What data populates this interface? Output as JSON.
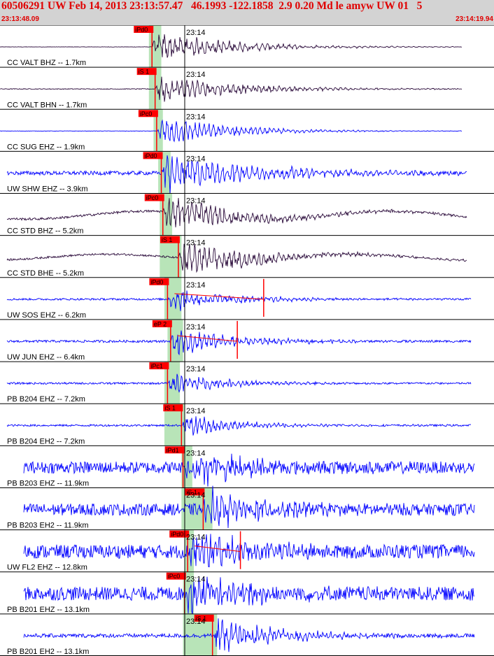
{
  "header": {
    "title": "60506291 UW Feb 14, 2013 23:13:57.47   46.1993 -122.1858  2.9 0.20 Md le amyw UW 01   5",
    "start_time": "23:13:48.09",
    "end_time": "23:14:19.94"
  },
  "minute_label": "23:14",
  "colors": {
    "pick": "#ff0000",
    "band": "#b8e4b8",
    "dark_trace": "#2a0a3a",
    "blue_trace": "#0000ff",
    "red": "#e00000"
  },
  "chart_data": {
    "type": "line",
    "title": "60506291 UW Feb 14, 2013 23:13:57.47   46.1993 -122.1858  2.9 0.20 Md le amyw UW 01   5",
    "x_axis": {
      "start": "23:13:48.09",
      "end": "23:14:19.94",
      "unit": "s",
      "range_seconds": [
        0,
        31.85
      ],
      "minute_mark": "23:14",
      "minute_mark_seconds": 11.91
    },
    "channels": [
      {
        "label": "CC VALT BHZ -- 1.7km",
        "pick": "iPd0",
        "pick_seconds": 9.8,
        "band_seconds": [
          9.6,
          10.4
        ],
        "color": "#2a0a3a",
        "trace_end_seconds": 29.8,
        "noise": 0.01,
        "amp": 0.75,
        "decay": 5,
        "period": 0.35,
        "drift": 0
      },
      {
        "label": "CC VALT BHN -- 1.7km",
        "pick": "iS 1",
        "pick_seconds": 10.0,
        "band_seconds": [
          9.6,
          10.4
        ],
        "color": "#2a0a3a",
        "trace_end_seconds": 29.8,
        "noise": 0.02,
        "amp": 0.7,
        "decay": 5,
        "period": 0.33,
        "drift": 0
      },
      {
        "label": "CC SUG EHZ -- 1.9km",
        "pick": "iPc0",
        "pick_seconds": 10.1,
        "band_seconds": [
          9.9,
          10.5
        ],
        "color": "#0000ff",
        "trace_end_seconds": 29.8,
        "noise": 0.01,
        "amp": 0.7,
        "decay": 4.5,
        "period": 0.3,
        "drift": 0
      },
      {
        "label": "UW SHW EHZ -- 3.9km",
        "pick": "iPd0",
        "pick_seconds": 10.4,
        "band_seconds": [
          10.2,
          11.0
        ],
        "color": "#0000ff",
        "trace_end_seconds": 30.1,
        "noise": 0.1,
        "amp": 0.95,
        "decay": 6,
        "period": 0.32,
        "drift": 0
      },
      {
        "label": "CC STD BHZ -- 5.2km",
        "pick": "iPc0",
        "pick_seconds": 10.5,
        "band_seconds": [
          10.3,
          11.1
        ],
        "color": "#2a0a3a",
        "trace_end_seconds": 30.1,
        "noise": 0.06,
        "amp": 0.85,
        "decay": 5,
        "period": 0.3,
        "drift": 0.2
      },
      {
        "label": "CC STD BHE -- 5.2km",
        "pick": "iS 1",
        "pick_seconds": 11.5,
        "band_seconds": [
          10.3,
          11.7
        ],
        "color": "#2a0a3a",
        "trace_end_seconds": 30.1,
        "noise": 0.05,
        "amp": 0.8,
        "decay": 5,
        "period": 0.32,
        "drift": 0.15
      },
      {
        "label": "UW SOS EHZ -- 6.2km",
        "pick": "iPd0",
        "pick_seconds": 10.8,
        "band_seconds": [
          10.6,
          11.7
        ],
        "color": "#0000ff",
        "trace_end_seconds": 30.4,
        "noise": 0.05,
        "amp": 0.6,
        "decay": 4,
        "period": 0.3,
        "drift": 0,
        "coda_tick_seconds": 17.0
      },
      {
        "label": "UW JUN EHZ -- 6.4km",
        "pick": "eP 2",
        "pick_seconds": 11.0,
        "band_seconds": [
          10.8,
          11.8
        ],
        "color": "#0000ff",
        "trace_end_seconds": 30.4,
        "noise": 0.06,
        "amp": 0.7,
        "decay": 4,
        "period": 0.3,
        "drift": 0,
        "coda_tick_seconds": 15.3
      },
      {
        "label": "PB B204 EHZ -- 7.2km",
        "pick": "iPc1",
        "pick_seconds": 10.8,
        "band_seconds": [
          10.6,
          11.6
        ],
        "color": "#0000ff",
        "trace_end_seconds": 30.4,
        "noise": 0.05,
        "amp": 0.6,
        "decay": 3.5,
        "period": 0.28,
        "drift": 0
      },
      {
        "label": "PB B204 EH2 -- 7.2km",
        "pick": "iS 1",
        "pick_seconds": 11.7,
        "band_seconds": [
          10.6,
          11.9
        ],
        "color": "#0000ff",
        "trace_end_seconds": 30.4,
        "noise": 0.05,
        "amp": 0.6,
        "decay": 3.5,
        "period": 0.28,
        "drift": 0
      },
      {
        "label": "PB B203 EHZ -- 11.9km",
        "pick": "iPd1",
        "pick_seconds": 11.8,
        "band_seconds": [
          11.7,
          12.4
        ],
        "color": "#0000ff",
        "trace_end_seconds": 30.6,
        "noise": 0.3,
        "amp": 0.95,
        "decay": 4,
        "period": 0.28,
        "drift": 0
      },
      {
        "label": "PB B203 EH2 -- 11.9km",
        "pick": "iS 1",
        "pick_seconds": 13.1,
        "band_seconds": [
          11.7,
          13.7
        ],
        "color": "#0000ff",
        "trace_end_seconds": 30.6,
        "noise": 0.3,
        "amp": 0.95,
        "decay": 4,
        "period": 0.28,
        "drift": 0
      },
      {
        "label": "UW FL2 EHZ -- 12.8km",
        "pick": "iPd0",
        "pick_seconds": 12.1,
        "band_seconds": [
          11.9,
          12.5
        ],
        "color": "#0000ff",
        "trace_end_seconds": 30.6,
        "noise": 0.35,
        "amp": 0.95,
        "decay": 4,
        "period": 0.28,
        "drift": 0,
        "coda_tick_seconds": 15.5
      },
      {
        "label": "PB B201 EHZ -- 13.1km",
        "pick": "iPc0",
        "pick_seconds": 11.9,
        "band_seconds": [
          11.8,
          12.5
        ],
        "color": "#0000ff",
        "trace_end_seconds": 30.6,
        "noise": 0.35,
        "amp": 0.95,
        "decay": 4,
        "period": 0.28,
        "drift": 0
      },
      {
        "label": "PB B201 EH2 -- 13.1km",
        "pick": "iS 1",
        "pick_seconds": 13.7,
        "band_seconds": [
          11.8,
          14.0
        ],
        "color": "#0000ff",
        "trace_end_seconds": 30.6,
        "noise": 0.1,
        "amp": 0.95,
        "decay": 4,
        "period": 0.28,
        "drift": 0
      }
    ]
  }
}
